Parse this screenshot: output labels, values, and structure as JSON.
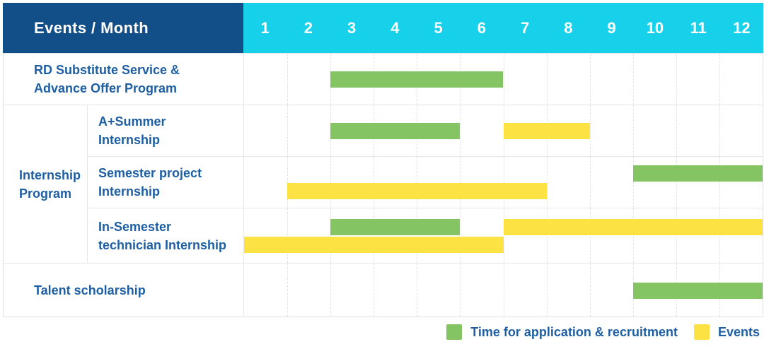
{
  "colors": {
    "header_bg": "#124e87",
    "months_bg": "#17d0e9",
    "header_text": "#ffffff",
    "label_text": "#1e5fa3",
    "application": "#84c462",
    "event": "#fde244",
    "grid_line": "#e3e3e3"
  },
  "header": {
    "label": "Events / Month",
    "months": [
      "1",
      "2",
      "3",
      "4",
      "5",
      "6",
      "7",
      "8",
      "9",
      "10",
      "11",
      "12"
    ]
  },
  "chart_data": {
    "type": "gantt",
    "title": "Events / Month",
    "x_label": "Month",
    "x_ticks": [
      "1",
      "2",
      "3",
      "4",
      "5",
      "6",
      "7",
      "8",
      "9",
      "10",
      "11",
      "12"
    ],
    "x_range": [
      1,
      12
    ],
    "grid": "vertical-dashed-month-lines",
    "groups": [
      {
        "label": "Internship Program",
        "label_lines": [
          "Internship",
          "Program"
        ],
        "row_indexes": [
          1,
          2,
          3
        ]
      }
    ],
    "rows": [
      {
        "label": "RD Substitute Service & Advance Offer Program",
        "label_lines": [
          "RD Substitute Service &",
          "Advance Offer Program"
        ],
        "group": "",
        "bars": [
          {
            "category": "application",
            "start_month": 3,
            "end_month": 6,
            "lane": "single"
          }
        ]
      },
      {
        "label": "A+Summer Internship",
        "label_lines": [
          "A+Summer",
          "Internship"
        ],
        "group": "Internship Program",
        "bars": [
          {
            "category": "application",
            "start_month": 3,
            "end_month": 5,
            "lane": "single"
          },
          {
            "category": "event",
            "start_month": 7,
            "end_month": 8,
            "lane": "single"
          }
        ]
      },
      {
        "label": "Semester project Internship",
        "label_lines": [
          "Semester project",
          "Internship"
        ],
        "group": "Internship Program",
        "bars": [
          {
            "category": "application",
            "start_month": 10,
            "end_month": 12,
            "lane": "top"
          },
          {
            "category": "event",
            "start_month": 2,
            "end_month": 7,
            "lane": "bottom"
          }
        ]
      },
      {
        "label": "In-Semester technician Internship",
        "label_lines": [
          "In-Semester",
          "technician Internship"
        ],
        "group": "Internship Program",
        "bars": [
          {
            "category": "application",
            "start_month": 3,
            "end_month": 5,
            "lane": "top"
          },
          {
            "category": "event",
            "start_month": 7,
            "end_month": 12,
            "lane": "top"
          },
          {
            "category": "event",
            "start_month": 1,
            "end_month": 6,
            "lane": "bottom"
          }
        ]
      },
      {
        "label": "Talent scholarship",
        "label_lines": [
          "Talent scholarship"
        ],
        "group": "",
        "bars": [
          {
            "category": "application",
            "start_month": 10,
            "end_month": 12,
            "lane": "single"
          }
        ]
      }
    ],
    "legend": [
      {
        "category": "application",
        "label": "Time for application & recruitment",
        "color": "#84c462"
      },
      {
        "category": "event",
        "label": "Events",
        "color": "#fde244"
      }
    ],
    "legend_position": "bottom-right"
  }
}
